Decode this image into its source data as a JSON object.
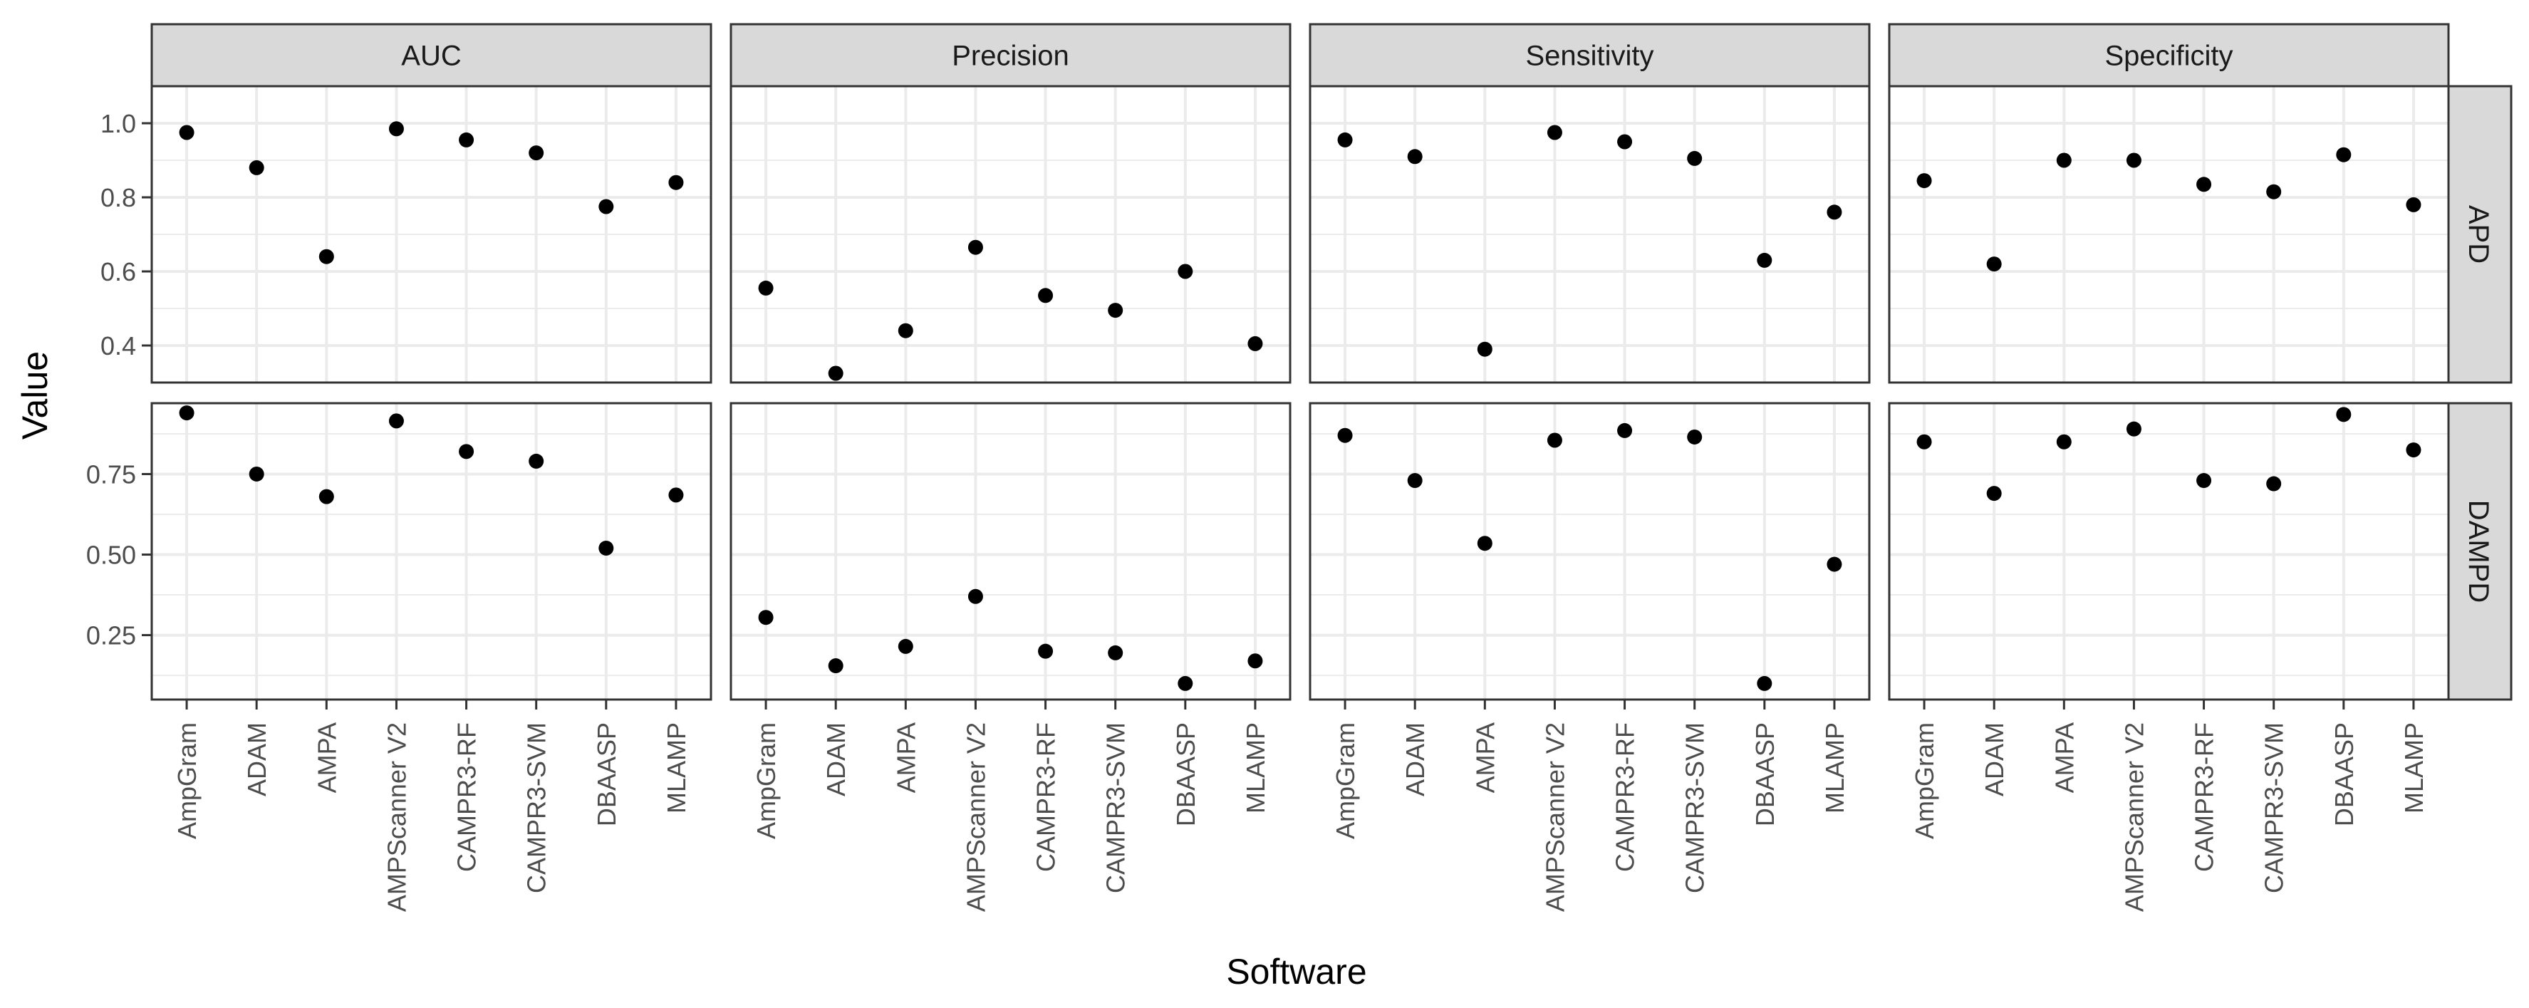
{
  "chart_data": {
    "type": "scatter",
    "xlabel": "Software",
    "ylabel": "Value",
    "categories": [
      "AmpGram",
      "ADAM",
      "AMPA",
      "AMPScanner V2",
      "CAMPR3-RF",
      "CAMPR3-SVM",
      "DBAASP",
      "MLAMP"
    ],
    "column_facets": [
      "AUC",
      "Precision",
      "Sensitivity",
      "Specificity"
    ],
    "row_facets": [
      "APD",
      "DAMPD"
    ],
    "rows": [
      {
        "name": "APD",
        "ylim": [
          0.3,
          1.1
        ],
        "y_ticks": [
          0.4,
          0.6,
          0.8,
          1.0
        ],
        "y_tick_labels": [
          "0.4",
          "0.6",
          "0.8",
          "1.0"
        ],
        "panels": [
          {
            "facet": "AUC",
            "values": [
              0.975,
              0.88,
              0.64,
              0.985,
              0.955,
              0.92,
              0.775,
              0.84
            ]
          },
          {
            "facet": "Precision",
            "values": [
              0.555,
              0.325,
              0.44,
              0.665,
              0.535,
              0.495,
              0.6,
              0.405
            ]
          },
          {
            "facet": "Sensitivity",
            "values": [
              0.955,
              0.91,
              0.39,
              0.975,
              0.95,
              0.905,
              0.63,
              0.76
            ]
          },
          {
            "facet": "Specificity",
            "values": [
              0.845,
              0.62,
              0.9,
              0.9,
              0.835,
              0.815,
              0.915,
              0.78
            ]
          }
        ]
      },
      {
        "name": "DAMPD",
        "ylim": [
          0.05,
          0.97
        ],
        "y_ticks": [
          0.25,
          0.5,
          0.75
        ],
        "y_tick_labels": [
          "0.25",
          "0.50",
          "0.75"
        ],
        "panels": [
          {
            "facet": "AUC",
            "values": [
              0.94,
              0.75,
              0.68,
              0.915,
              0.82,
              0.79,
              0.52,
              0.685
            ]
          },
          {
            "facet": "Precision",
            "values": [
              0.305,
              0.155,
              0.215,
              0.37,
              0.2,
              0.195,
              0.1,
              0.17
            ]
          },
          {
            "facet": "Sensitivity",
            "values": [
              0.87,
              0.73,
              0.535,
              0.855,
              0.885,
              0.865,
              0.1,
              0.47
            ]
          },
          {
            "facet": "Specificity",
            "values": [
              0.85,
              0.69,
              0.85,
              0.89,
              0.73,
              0.72,
              0.935,
              0.825
            ]
          }
        ]
      }
    ]
  }
}
